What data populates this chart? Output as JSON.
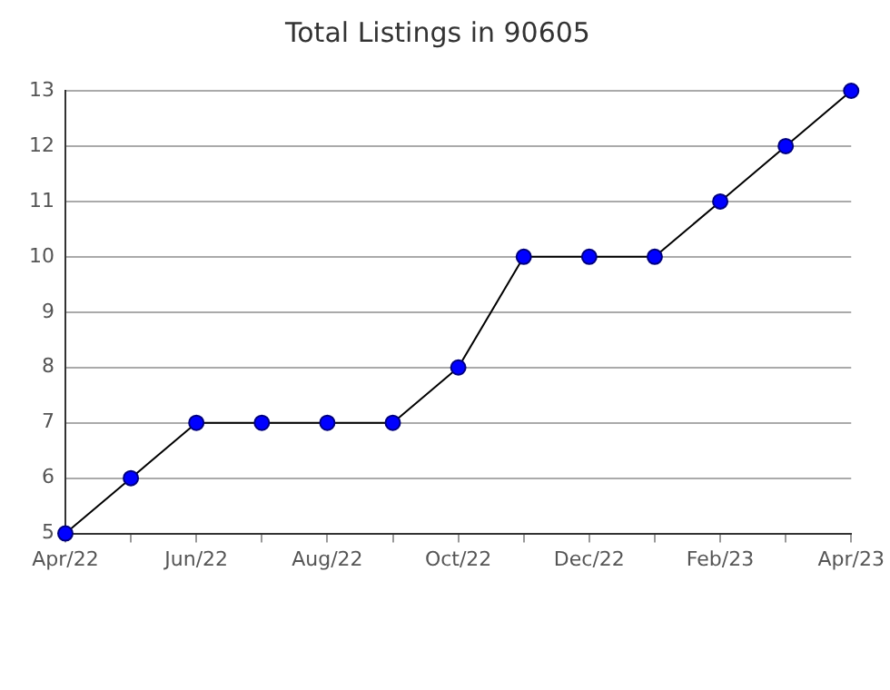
{
  "chart_data": {
    "type": "line",
    "title": "Total Listings in 90605",
    "categories": [
      "Apr/22",
      null,
      "Jun/22",
      null,
      "Aug/22",
      null,
      "Oct/22",
      null,
      "Dec/22",
      null,
      "Feb/23",
      null,
      "Apr/23"
    ],
    "series": [
      {
        "color": "#0000ff",
        "values": [
          5,
          6,
          7,
          7,
          7,
          7,
          8,
          10,
          10,
          10,
          11,
          12,
          13
        ]
      }
    ],
    "ylim": [
      5,
      13
    ],
    "yticks": [
      5,
      6,
      7,
      8,
      9,
      10,
      11,
      12,
      13
    ],
    "grid": "y",
    "marker": "circle",
    "line_style": "solid",
    "legend": false
  }
}
